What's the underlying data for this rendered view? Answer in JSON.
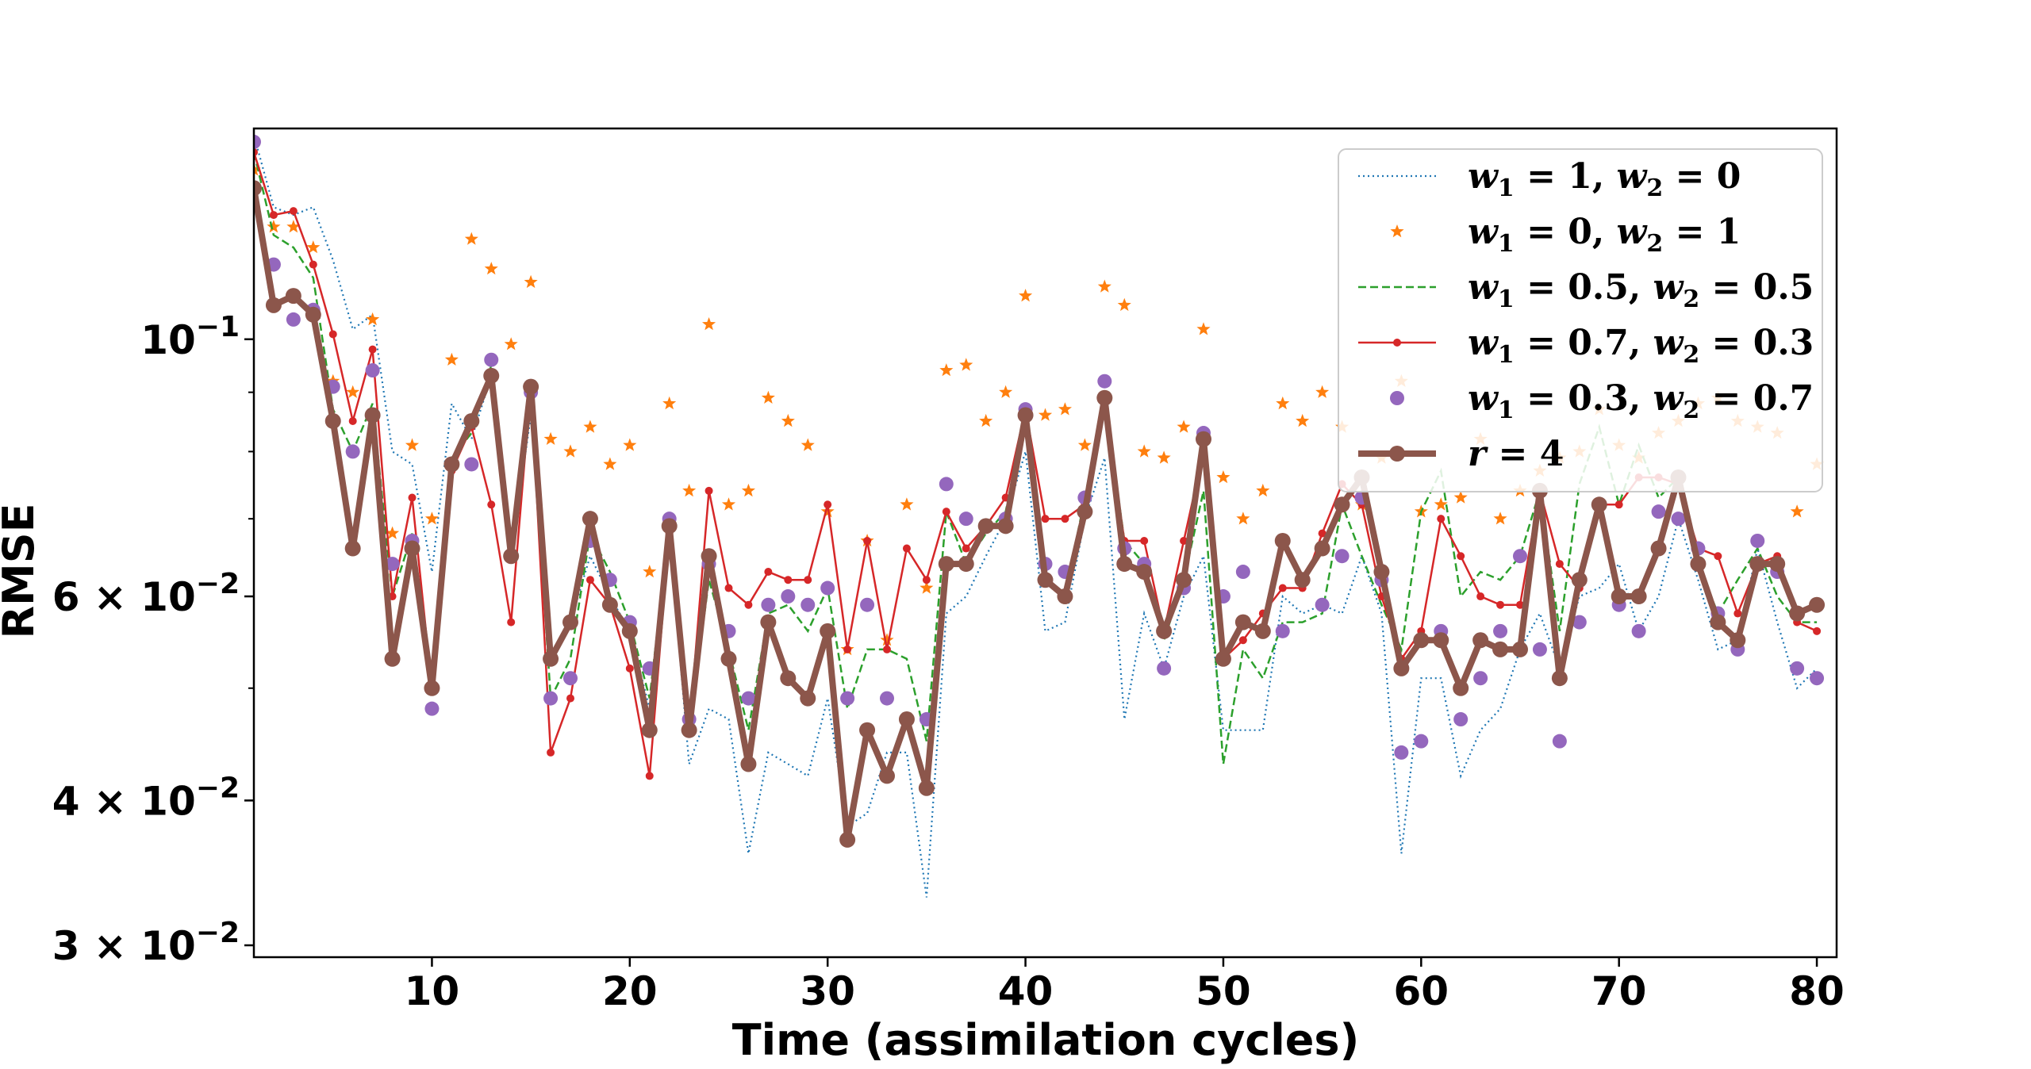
{
  "chart_data": {
    "type": "line",
    "title": "",
    "xlabel": "Time (assimilation cycles)",
    "ylabel": "RMSE",
    "xlim": [
      1,
      81
    ],
    "ylim": [
      0.0293,
      0.152
    ],
    "yscale": "log",
    "grid": false,
    "legend_position": "top-right",
    "colors": {
      "blue": "#1f77b4",
      "orange": "#ff7f0e",
      "green": "#2ca02c",
      "red": "#d62728",
      "purple": "#9467bd",
      "brown": "#8c564b"
    },
    "x": [
      1,
      2,
      3,
      4,
      5,
      6,
      7,
      8,
      9,
      10,
      11,
      12,
      13,
      14,
      15,
      16,
      17,
      18,
      19,
      20,
      21,
      22,
      23,
      24,
      25,
      26,
      27,
      28,
      29,
      30,
      31,
      32,
      33,
      34,
      35,
      36,
      37,
      38,
      39,
      40,
      41,
      42,
      43,
      44,
      45,
      46,
      47,
      48,
      49,
      50,
      51,
      52,
      53,
      54,
      55,
      56,
      57,
      58,
      59,
      60,
      61,
      62,
      63,
      64,
      65,
      66,
      67,
      68,
      69,
      70,
      71,
      72,
      73,
      74,
      75,
      76,
      77,
      78,
      79,
      80
    ],
    "xticks": [
      10,
      20,
      30,
      40,
      50,
      60,
      70,
      80
    ],
    "xtick_labels": [
      "10",
      "20",
      "30",
      "40",
      "50",
      "60",
      "70",
      "80"
    ],
    "yticks": [
      {
        "value": 0.03,
        "base": "3 × 10",
        "exp": "−2"
      },
      {
        "value": 0.04,
        "base": "4 × 10",
        "exp": "−2"
      },
      {
        "value": 0.06,
        "base": "6 × 10",
        "exp": "−2"
      },
      {
        "value": 0.1,
        "base": "10",
        "exp": "−1"
      }
    ],
    "series": [
      {
        "name": "w1 = 1, w2 = 0",
        "legend": {
          "a": "w",
          "s1": "1",
          "b": " = 1, ",
          "c": "w",
          "s2": "2",
          "d": " = 0"
        },
        "color": "#1f77b4",
        "style": "dotted",
        "values": [
          0.15,
          0.13,
          0.128,
          0.13,
          0.117,
          0.102,
          0.105,
          0.08,
          0.078,
          0.063,
          0.088,
          0.082,
          0.093,
          0.065,
          0.086,
          0.053,
          0.057,
          0.065,
          0.06,
          0.056,
          0.048,
          0.068,
          0.043,
          0.048,
          0.047,
          0.036,
          0.044,
          0.043,
          0.042,
          0.049,
          0.038,
          0.039,
          0.044,
          0.044,
          0.033,
          0.058,
          0.06,
          0.065,
          0.07,
          0.08,
          0.056,
          0.057,
          0.07,
          0.079,
          0.047,
          0.058,
          0.052,
          0.06,
          0.065,
          0.046,
          0.046,
          0.046,
          0.06,
          0.058,
          0.059,
          0.058,
          0.065,
          0.058,
          0.036,
          0.051,
          0.051,
          0.042,
          0.046,
          0.048,
          0.054,
          0.058,
          0.052,
          0.06,
          0.061,
          0.064,
          0.056,
          0.06,
          0.07,
          0.062,
          0.054,
          0.055,
          0.066,
          0.057,
          0.05,
          0.052
        ]
      },
      {
        "name": "w1 = 0, w2 = 1",
        "legend": {
          "a": "w",
          "s1": "1",
          "b": " = 0, ",
          "c": "w",
          "s2": "2",
          "d": " = 1"
        },
        "color": "#ff7f0e",
        "style": "star",
        "values": [
          0.14,
          0.125,
          0.125,
          0.12,
          0.092,
          0.09,
          0.104,
          0.068,
          0.081,
          0.07,
          0.096,
          0.122,
          0.115,
          0.099,
          0.112,
          0.082,
          0.08,
          0.084,
          0.078,
          0.081,
          0.063,
          0.088,
          0.074,
          0.103,
          0.072,
          0.074,
          0.089,
          0.085,
          0.081,
          0.071,
          0.054,
          0.067,
          0.055,
          0.072,
          0.061,
          0.094,
          0.095,
          0.085,
          0.09,
          0.109,
          0.086,
          0.087,
          0.081,
          0.111,
          0.107,
          0.08,
          0.079,
          0.084,
          0.102,
          0.076,
          0.07,
          0.074,
          0.088,
          0.085,
          0.09,
          0.084,
          0.072,
          0.079,
          0.092,
          0.071,
          0.072,
          0.073,
          0.082,
          0.07,
          0.074,
          0.077,
          0.079,
          0.08,
          0.087,
          0.081,
          0.079,
          0.083,
          0.085,
          0.088,
          0.089,
          0.085,
          0.084,
          0.083,
          0.071,
          0.078
        ]
      },
      {
        "name": "w1 = 0.5, w2 = 0.5",
        "legend": {
          "a": "w",
          "s1": "1",
          "b": " = 0.5, ",
          "c": "w",
          "s2": "2",
          "d": " = 0.5"
        },
        "color": "#2ca02c",
        "style": "dashed",
        "values": [
          0.145,
          0.123,
          0.12,
          0.113,
          0.087,
          0.08,
          0.088,
          0.06,
          0.068,
          0.05,
          0.079,
          0.083,
          0.095,
          0.066,
          0.09,
          0.049,
          0.053,
          0.068,
          0.063,
          0.057,
          0.049,
          0.069,
          0.046,
          0.062,
          0.054,
          0.046,
          0.058,
          0.059,
          0.056,
          0.061,
          0.048,
          0.054,
          0.054,
          0.053,
          0.045,
          0.071,
          0.064,
          0.068,
          0.071,
          0.086,
          0.062,
          0.06,
          0.073,
          0.089,
          0.067,
          0.064,
          0.055,
          0.062,
          0.074,
          0.043,
          0.054,
          0.051,
          0.057,
          0.057,
          0.058,
          0.072,
          0.065,
          0.059,
          0.054,
          0.071,
          0.077,
          0.06,
          0.063,
          0.062,
          0.065,
          0.074,
          0.056,
          0.075,
          0.084,
          0.072,
          0.081,
          0.073,
          0.076,
          0.064,
          0.058,
          0.062,
          0.066,
          0.06,
          0.057,
          0.057
        ]
      },
      {
        "name": "w1 = 0.7, w2 = 0.3",
        "legend": {
          "a": "w",
          "s1": "1",
          "b": " = 0.7, ",
          "c": "w",
          "s2": "2",
          "d": " = 0.3"
        },
        "color": "#d62728",
        "style": "line-dot",
        "values": [
          0.145,
          0.128,
          0.129,
          0.116,
          0.101,
          0.085,
          0.098,
          0.06,
          0.073,
          0.05,
          0.077,
          0.084,
          0.072,
          0.057,
          0.091,
          0.044,
          0.049,
          0.062,
          0.059,
          0.052,
          0.042,
          0.068,
          0.046,
          0.074,
          0.061,
          0.059,
          0.063,
          0.062,
          0.062,
          0.072,
          0.054,
          0.067,
          0.054,
          0.066,
          0.062,
          0.071,
          0.066,
          0.069,
          0.073,
          0.087,
          0.07,
          0.07,
          0.072,
          0.088,
          0.067,
          0.067,
          0.056,
          0.067,
          0.08,
          0.053,
          0.055,
          0.058,
          0.061,
          0.061,
          0.068,
          0.075,
          0.072,
          0.06,
          0.053,
          0.056,
          0.07,
          0.065,
          0.06,
          0.059,
          0.059,
          0.074,
          0.064,
          0.061,
          0.072,
          0.072,
          0.076,
          0.076,
          0.075,
          0.066,
          0.065,
          0.058,
          0.064,
          0.065,
          0.057,
          0.056
        ]
      },
      {
        "name": "w1 = 0.3, w2 = 0.7",
        "legend": {
          "a": "w",
          "s1": "1",
          "b": " = 0.3, ",
          "c": "w",
          "s2": "2",
          "d": " = 0.7"
        },
        "color": "#9467bd",
        "style": "dots",
        "values": [
          0.148,
          0.116,
          0.104,
          0.106,
          0.091,
          0.08,
          0.094,
          0.064,
          0.067,
          0.048,
          0.078,
          0.078,
          0.096,
          0.065,
          0.09,
          0.049,
          0.051,
          0.067,
          0.062,
          0.057,
          0.052,
          0.07,
          0.047,
          0.064,
          0.056,
          0.049,
          0.059,
          0.06,
          0.059,
          0.061,
          0.049,
          0.059,
          0.049,
          0.047,
          0.047,
          0.075,
          0.07,
          0.069,
          0.07,
          0.087,
          0.064,
          0.063,
          0.073,
          0.092,
          0.066,
          0.064,
          0.052,
          0.061,
          0.083,
          0.06,
          0.063,
          0.056,
          0.056,
          0.062,
          0.059,
          0.065,
          0.073,
          0.062,
          0.044,
          0.045,
          0.056,
          0.047,
          0.051,
          0.056,
          0.065,
          0.054,
          0.045,
          0.057,
          0.072,
          0.059,
          0.056,
          0.071,
          0.07,
          0.066,
          0.058,
          0.054,
          0.067,
          0.063,
          0.052,
          0.051
        ]
      },
      {
        "name": "r = 4",
        "legend": {
          "a": "r",
          "s1": "",
          "b": " = 4",
          "c": "",
          "s2": "",
          "d": ""
        },
        "color": "#8c564b",
        "style": "thick-line-dot",
        "values": [
          0.135,
          0.107,
          0.109,
          0.105,
          0.085,
          0.066,
          0.086,
          0.053,
          0.066,
          0.05,
          0.078,
          0.085,
          0.093,
          0.065,
          0.091,
          0.053,
          0.057,
          0.07,
          0.059,
          0.056,
          0.046,
          0.069,
          0.046,
          0.065,
          0.053,
          0.043,
          0.057,
          0.051,
          0.049,
          0.056,
          0.037,
          0.046,
          0.042,
          0.047,
          0.041,
          0.064,
          0.064,
          0.069,
          0.069,
          0.086,
          0.062,
          0.06,
          0.071,
          0.089,
          0.064,
          0.063,
          0.056,
          0.062,
          0.082,
          0.053,
          0.057,
          0.056,
          0.067,
          0.062,
          0.066,
          0.072,
          0.076,
          0.063,
          0.052,
          0.055,
          0.055,
          0.05,
          0.055,
          0.054,
          0.054,
          0.074,
          0.051,
          0.062,
          0.072,
          0.06,
          0.06,
          0.066,
          0.076,
          0.064,
          0.057,
          0.055,
          0.064,
          0.064,
          0.058,
          0.059
        ]
      }
    ]
  }
}
